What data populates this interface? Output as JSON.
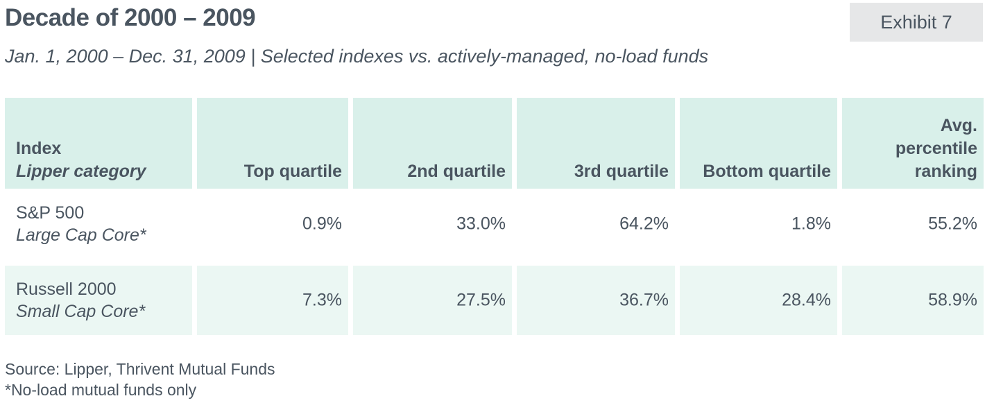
{
  "title": "Decade of 2000 – 2009",
  "exhibit": "Exhibit 7",
  "subtitle": "Jan. 1, 2000 – Dec. 31, 2009  |  Selected indexes vs. actively-managed, no-load funds",
  "table": {
    "headers": {
      "index": "Index",
      "lipper": "Lipper category",
      "top": "Top quartile",
      "second": "2nd quartile",
      "third": "3rd quartile",
      "bottom": "Bottom quartile",
      "avg_line1": "Avg.",
      "avg_line2": "percentile",
      "avg_line3": "ranking"
    },
    "rows": [
      {
        "index": "S&P 500",
        "category": "Large Cap Core*",
        "top": "0.9%",
        "second": "33.0%",
        "third": "64.2%",
        "bottom": "1.8%",
        "avg": "55.2%"
      },
      {
        "index": "Russell 2000",
        "category": "Small Cap Core*",
        "top": "7.3%",
        "second": "27.5%",
        "third": "36.7%",
        "bottom": "28.4%",
        "avg": "58.9%"
      }
    ]
  },
  "footnotes": {
    "source": "Source: Lipper, Thrivent Mutual Funds",
    "note": "*No-load mutual funds only"
  }
}
